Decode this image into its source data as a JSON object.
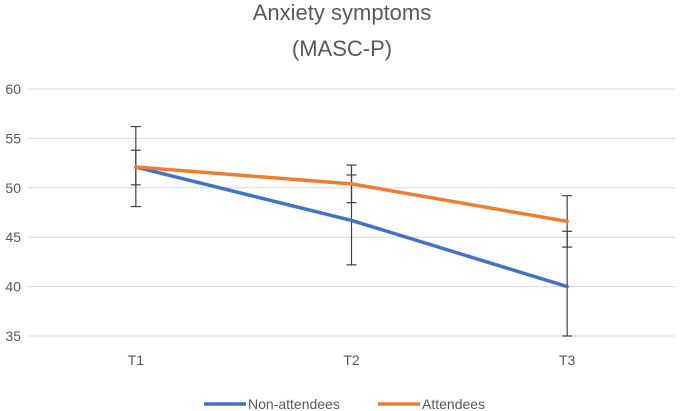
{
  "chart_data": {
    "type": "line",
    "title_lines": [
      "Anxiety symptoms",
      "(MASC-P)"
    ],
    "categories": [
      "T1",
      "T2",
      "T3"
    ],
    "ylim": [
      35,
      60
    ],
    "yticks": [
      35,
      40,
      45,
      50,
      55,
      60
    ],
    "grid": true,
    "legend_position": "bottom",
    "series": [
      {
        "name": "Non-attendees",
        "color": "#4472C4",
        "values": [
          52.1,
          46.7,
          40.0
        ],
        "error_low": [
          48.1,
          42.2,
          35.0
        ],
        "error_high": [
          56.2,
          51.3,
          45.6
        ]
      },
      {
        "name": "Attendees",
        "color": "#ED7D31",
        "values": [
          52.1,
          50.4,
          46.6
        ],
        "error_low": [
          50.3,
          48.5,
          44.0
        ],
        "error_high": [
          53.8,
          52.3,
          49.2
        ]
      }
    ]
  }
}
